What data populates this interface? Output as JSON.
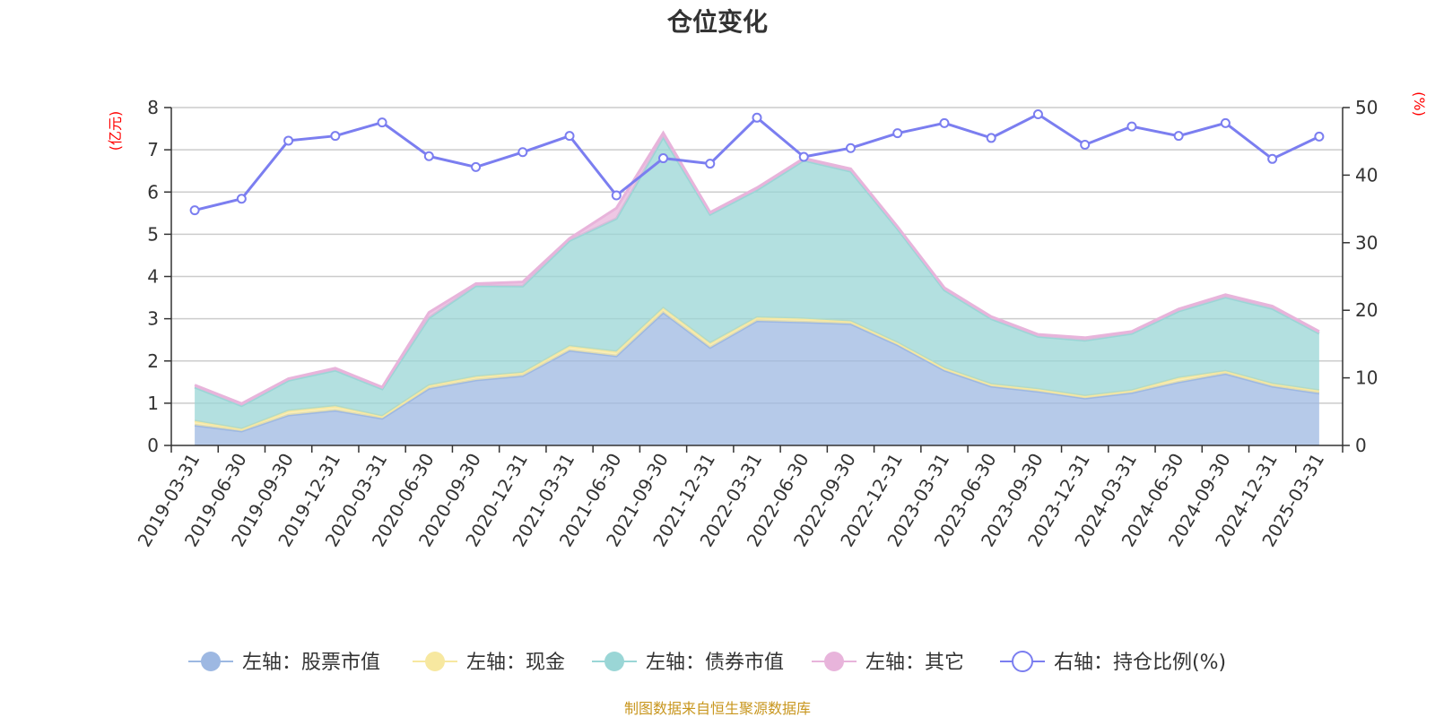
{
  "chart_data": {
    "type": "area",
    "title": "仓位变化",
    "source": "制图数据来自恒生聚源数据库",
    "left_axis": {
      "unit": "(亿元)",
      "min": 0,
      "max": 8,
      "ticks": [
        "0",
        "1",
        "2",
        "3",
        "4",
        "5",
        "6",
        "7",
        "8"
      ]
    },
    "right_axis": {
      "unit": "(%)",
      "min": 0,
      "max": 50,
      "ticks": [
        "0",
        "10",
        "20",
        "30",
        "40",
        "50"
      ]
    },
    "categories": [
      "2019-03-31",
      "2019-06-30",
      "2019-09-30",
      "2019-12-31",
      "2020-03-31",
      "2020-06-30",
      "2020-09-30",
      "2020-12-31",
      "2021-03-31",
      "2021-06-30",
      "2021-09-30",
      "2021-12-31",
      "2022-03-31",
      "2022-06-30",
      "2022-09-30",
      "2022-12-31",
      "2023-03-31",
      "2023-06-30",
      "2023-09-30",
      "2023-12-31",
      "2024-03-31",
      "2024-06-30",
      "2024-09-30",
      "2024-12-31",
      "2025-03-31"
    ],
    "series": [
      {
        "name": "左轴：股票市值",
        "axis": "left",
        "kind": "area",
        "color": "#9db8e2",
        "values": [
          0.48,
          0.34,
          0.72,
          0.83,
          0.64,
          1.35,
          1.55,
          1.65,
          2.25,
          2.12,
          3.15,
          2.32,
          2.95,
          2.92,
          2.88,
          2.38,
          1.78,
          1.4,
          1.28,
          1.12,
          1.25,
          1.5,
          1.7,
          1.4,
          1.24
        ]
      },
      {
        "name": "左轴：现金",
        "axis": "left",
        "kind": "area",
        "color": "#f7e8a0",
        "values": [
          0.1,
          0.05,
          0.1,
          0.1,
          0.05,
          0.07,
          0.08,
          0.07,
          0.1,
          0.1,
          0.1,
          0.1,
          0.08,
          0.08,
          0.06,
          0.05,
          0.05,
          0.05,
          0.05,
          0.05,
          0.05,
          0.1,
          0.06,
          0.06,
          0.06
        ]
      },
      {
        "name": "左轴：债券市值",
        "axis": "left",
        "kind": "area",
        "color": "#9ad6d6",
        "values": [
          0.8,
          0.55,
          0.72,
          0.85,
          0.65,
          1.6,
          2.15,
          2.05,
          2.5,
          3.15,
          4.05,
          3.05,
          3.02,
          3.75,
          3.55,
          2.7,
          1.85,
          1.55,
          1.25,
          1.32,
          1.35,
          1.58,
          1.75,
          1.78,
          1.35
        ]
      },
      {
        "name": "左轴：其它",
        "axis": "left",
        "kind": "area",
        "color": "#e8b4db",
        "values": [
          0.05,
          0.05,
          0.04,
          0.05,
          0.04,
          0.13,
          0.05,
          0.1,
          0.05,
          0.25,
          0.1,
          0.05,
          0.05,
          0.05,
          0.06,
          0.05,
          0.05,
          0.05,
          0.05,
          0.06,
          0.05,
          0.05,
          0.06,
          0.06,
          0.05
        ]
      },
      {
        "name": "右轴：持仓比例(%)",
        "axis": "right",
        "kind": "line",
        "color": "#7b7ef0",
        "values": [
          34.8,
          36.5,
          45.1,
          45.8,
          47.8,
          42.8,
          41.2,
          43.4,
          45.8,
          37.0,
          42.5,
          41.7,
          48.5,
          42.7,
          44.0,
          46.2,
          47.7,
          45.5,
          49.0,
          44.5,
          47.2,
          45.8,
          47.7,
          42.4,
          45.7
        ]
      }
    ]
  }
}
